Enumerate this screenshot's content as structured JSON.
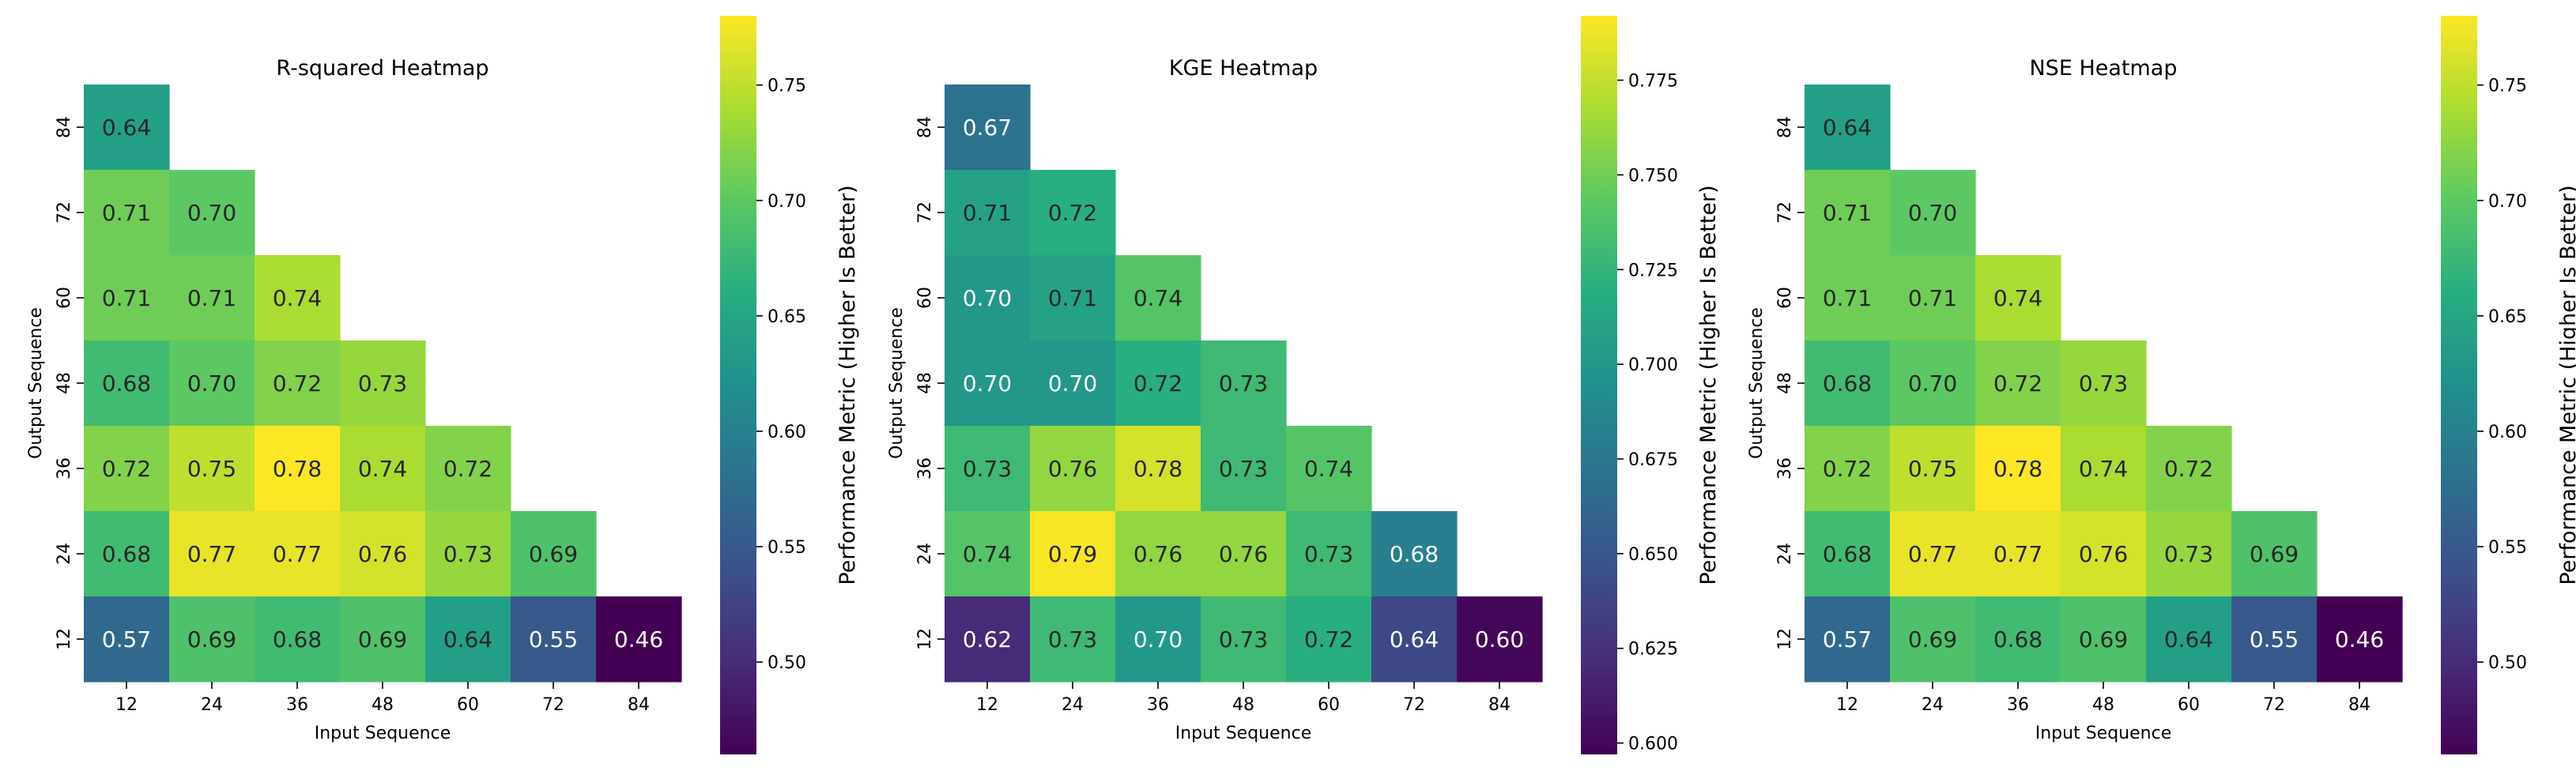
{
  "chart_data": [
    {
      "type": "heatmap",
      "title": "R-squared Heatmap",
      "xlabel": "Input Sequence",
      "ylabel": "Output Sequence",
      "x_ticks": [
        "12",
        "24",
        "36",
        "48",
        "60",
        "72",
        "84"
      ],
      "y_ticks": [
        "84",
        "72",
        "60",
        "48",
        "36",
        "24",
        "12"
      ],
      "values": [
        [
          0.64,
          null,
          null,
          null,
          null,
          null,
          null
        ],
        [
          0.71,
          0.7,
          null,
          null,
          null,
          null,
          null
        ],
        [
          0.71,
          0.71,
          0.74,
          null,
          null,
          null,
          null
        ],
        [
          0.68,
          0.7,
          0.72,
          0.73,
          null,
          null,
          null
        ],
        [
          0.72,
          0.75,
          0.78,
          0.74,
          0.72,
          null,
          null
        ],
        [
          0.68,
          0.77,
          0.77,
          0.76,
          0.73,
          0.69,
          null
        ],
        [
          0.57,
          0.69,
          0.68,
          0.69,
          0.64,
          0.55,
          0.46
        ]
      ],
      "vmin": 0.46,
      "vmax": 0.78,
      "colormap": "viridis",
      "colorbar": {
        "label": "Performance Metric (Higher Is Better)",
        "ticks": [
          "0.50",
          "0.55",
          "0.60",
          "0.65",
          "0.70",
          "0.75"
        ]
      }
    },
    {
      "type": "heatmap",
      "title": "KGE Heatmap",
      "xlabel": "Input Sequence",
      "ylabel": "Output Sequence",
      "x_ticks": [
        "12",
        "24",
        "36",
        "48",
        "60",
        "72",
        "84"
      ],
      "y_ticks": [
        "84",
        "72",
        "60",
        "48",
        "36",
        "24",
        "12"
      ],
      "values": [
        [
          0.67,
          null,
          null,
          null,
          null,
          null,
          null
        ],
        [
          0.71,
          0.72,
          null,
          null,
          null,
          null,
          null
        ],
        [
          0.7,
          0.71,
          0.74,
          null,
          null,
          null,
          null
        ],
        [
          0.7,
          0.7,
          0.72,
          0.73,
          null,
          null,
          null
        ],
        [
          0.73,
          0.76,
          0.78,
          0.73,
          0.74,
          null,
          null
        ],
        [
          0.74,
          0.79,
          0.76,
          0.76,
          0.73,
          0.68,
          null
        ],
        [
          0.62,
          0.73,
          0.7,
          0.73,
          0.72,
          0.64,
          0.6
        ]
      ],
      "vmin": 0.597,
      "vmax": 0.792,
      "colormap": "viridis",
      "colorbar": {
        "label": "Performance Metric (Higher Is Better)",
        "ticks": [
          "0.600",
          "0.625",
          "0.650",
          "0.675",
          "0.700",
          "0.725",
          "0.750",
          "0.775"
        ]
      }
    },
    {
      "type": "heatmap",
      "title": "NSE Heatmap",
      "xlabel": "Input Sequence",
      "ylabel": "Output Sequence",
      "x_ticks": [
        "12",
        "24",
        "36",
        "48",
        "60",
        "72",
        "84"
      ],
      "y_ticks": [
        "84",
        "72",
        "60",
        "48",
        "36",
        "24",
        "12"
      ],
      "values": [
        [
          0.64,
          null,
          null,
          null,
          null,
          null,
          null
        ],
        [
          0.71,
          0.7,
          null,
          null,
          null,
          null,
          null
        ],
        [
          0.71,
          0.71,
          0.74,
          null,
          null,
          null,
          null
        ],
        [
          0.68,
          0.7,
          0.72,
          0.73,
          null,
          null,
          null
        ],
        [
          0.72,
          0.75,
          0.78,
          0.74,
          0.72,
          null,
          null
        ],
        [
          0.68,
          0.77,
          0.77,
          0.76,
          0.73,
          0.69,
          null
        ],
        [
          0.57,
          0.69,
          0.68,
          0.69,
          0.64,
          0.55,
          0.46
        ]
      ],
      "vmin": 0.46,
      "vmax": 0.78,
      "colormap": "viridis",
      "colorbar": {
        "label": "Performance Metric (Higher Is Better)",
        "ticks": [
          "0.50",
          "0.55",
          "0.60",
          "0.65",
          "0.70",
          "0.75"
        ]
      }
    }
  ]
}
